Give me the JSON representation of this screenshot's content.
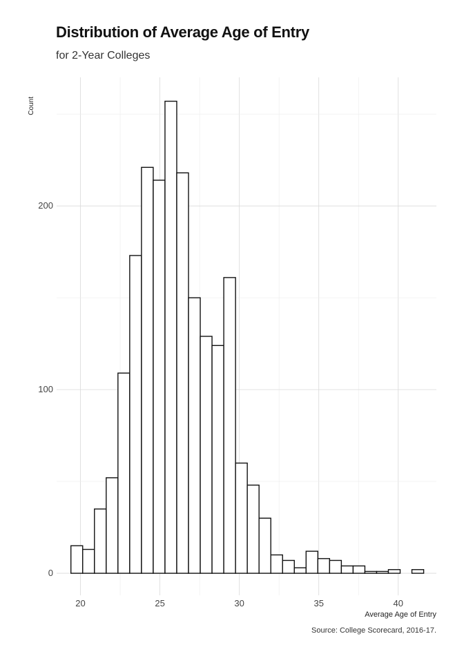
{
  "chart_data": {
    "type": "bar",
    "title": "Distribution of Average Age of Entry",
    "subtitle": "for 2-Year Colleges",
    "xlabel": "Average Age of Entry",
    "ylabel": "Count",
    "caption": "Source: College Scorecard, 2016-17.",
    "bin_width": 0.74,
    "bin_start": 19.4,
    "x_ticks": [
      20,
      25,
      30,
      35,
      40
    ],
    "y_ticks": [
      0,
      100,
      200
    ],
    "xlim": [
      18.5,
      42.4
    ],
    "ylim": [
      -12,
      270
    ],
    "grid": true,
    "values": [
      15,
      13,
      35,
      52,
      109,
      173,
      221,
      214,
      257,
      218,
      150,
      129,
      124,
      161,
      60,
      48,
      30,
      10,
      7,
      3,
      12,
      8,
      7,
      4,
      4,
      1,
      1,
      2,
      0,
      2
    ],
    "bar_fill": "#ffffff",
    "bar_stroke": "#111111"
  }
}
